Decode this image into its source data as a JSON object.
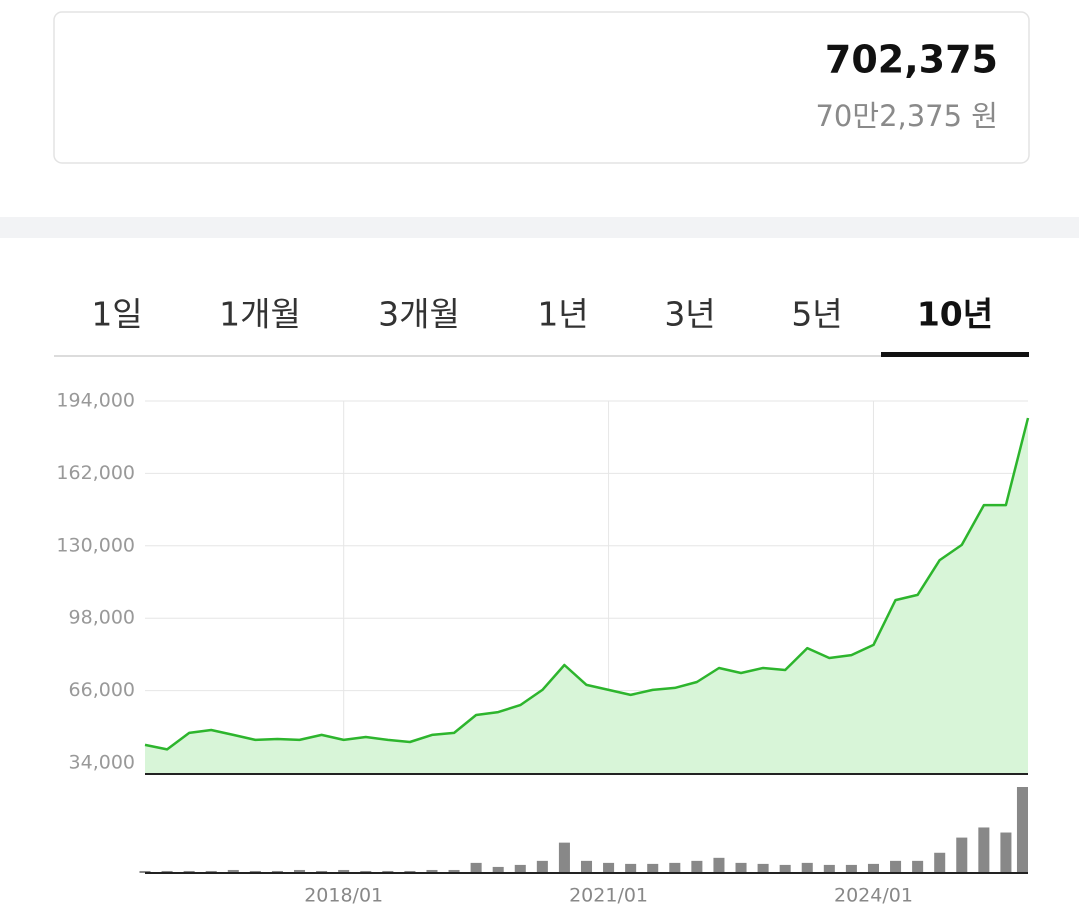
{
  "header": {
    "price": "702,375",
    "price_korean": "70만2,375 원"
  },
  "tabs": {
    "labels": [
      "1일",
      "1개월",
      "3개월",
      "1년",
      "3년",
      "5년",
      "10년"
    ],
    "active": 6
  },
  "chart_data": {
    "type": "line",
    "x": [
      "2015/10",
      "2016/01",
      "2016/04",
      "2016/07",
      "2016/10",
      "2017/01",
      "2017/04",
      "2017/07",
      "2017/10",
      "2018/01",
      "2018/04",
      "2018/07",
      "2018/10",
      "2019/01",
      "2019/04",
      "2019/07",
      "2019/10",
      "2020/01",
      "2020/04",
      "2020/07",
      "2020/10",
      "2021/01",
      "2021/04",
      "2021/07",
      "2021/10",
      "2022/01",
      "2022/04",
      "2022/07",
      "2022/10",
      "2023/01",
      "2023/04",
      "2023/07",
      "2023/10",
      "2024/01",
      "2024/04",
      "2024/07",
      "2024/10",
      "2025/01",
      "2025/04",
      "2025/07",
      "2025/10"
    ],
    "series": [
      {
        "color": "#2db52d",
        "values": [
          42000,
          40000,
          47300,
          48600,
          46400,
          44200,
          44600,
          44200,
          46400,
          44200,
          45500,
          44200,
          43300,
          46400,
          47300,
          55200,
          56500,
          59600,
          66300,
          77300,
          68500,
          66300,
          64100,
          66300,
          67200,
          69800,
          76000,
          73800,
          76000,
          75100,
          84800,
          80400,
          81700,
          86200,
          106000,
          108300,
          123700,
          130400,
          148000,
          148000,
          186500
        ]
      },
      {
        "color": "#888888",
        "values": [
          2,
          2,
          2,
          2,
          3,
          2,
          2,
          3,
          2,
          3,
          2,
          2,
          2,
          3,
          3,
          10,
          6,
          8,
          12,
          30,
          12,
          10,
          9,
          9,
          10,
          12,
          15,
          10,
          9,
          8,
          10,
          8,
          8,
          9,
          12,
          12,
          20,
          35,
          45,
          40,
          85
        ]
      }
    ],
    "ylim": [
      34000,
      194000
    ],
    "yticks": [
      {
        "value": 194000,
        "label": "194,000"
      },
      {
        "value": 162000,
        "label": "162,000"
      },
      {
        "value": 130000,
        "label": "130,000"
      },
      {
        "value": 98000,
        "label": "98,000"
      },
      {
        "value": 66000,
        "label": "66,000"
      },
      {
        "value": 34000,
        "label": "34,000"
      }
    ],
    "xticks": [
      "2018/01",
      "2021/01",
      "2024/01"
    ],
    "grid": true
  }
}
